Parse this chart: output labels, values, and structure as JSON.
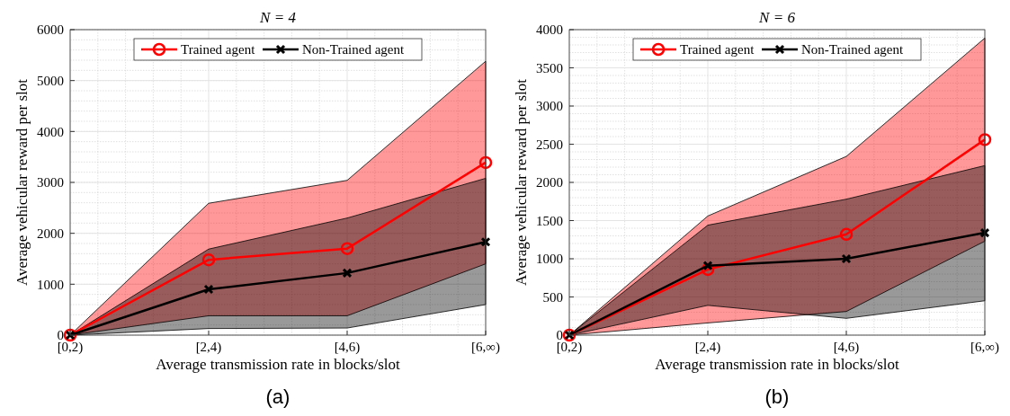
{
  "chart_data": [
    {
      "type": "line",
      "title": "N = 4",
      "xlabel": "Average transmission rate in blocks/slot",
      "ylabel": "Average vehicular reward per slot",
      "categories": [
        "[0,2)",
        "[2,4)",
        "[4,6)",
        "[6,∞)"
      ],
      "ylim": [
        0,
        6000
      ],
      "yticks": [
        0,
        1000,
        2000,
        3000,
        4000,
        5000,
        6000
      ],
      "grid": true,
      "legend": "top",
      "annotations": [
        "(a)"
      ],
      "series": [
        {
          "name": "Trained agent",
          "color": "#ff0000",
          "marker": "circle",
          "values": [
            0,
            1480,
            1700,
            3390
          ],
          "lower": [
            0,
            380,
            380,
            1400
          ],
          "upper": [
            0,
            2590,
            3040,
            5380
          ]
        },
        {
          "name": "Non-Trained agent",
          "color": "#000000",
          "marker": "cross",
          "values": [
            0,
            900,
            1220,
            1830
          ],
          "lower": [
            0,
            130,
            140,
            600
          ],
          "upper": [
            0,
            1690,
            2300,
            3080
          ]
        }
      ]
    },
    {
      "type": "line",
      "title": "N = 6",
      "xlabel": "Average transmission rate in blocks/slot",
      "ylabel": "Average vehicular reward per slot",
      "categories": [
        "[0,2)",
        "[2,4)",
        "[4,6)",
        "[6,∞)"
      ],
      "ylim": [
        0,
        4000
      ],
      "yticks": [
        0,
        500,
        1000,
        1500,
        2000,
        2500,
        3000,
        3500,
        4000
      ],
      "grid": true,
      "legend": "top",
      "annotations": [
        "(b)"
      ],
      "series": [
        {
          "name": "Trained agent",
          "color": "#ff0000",
          "marker": "circle",
          "values": [
            0,
            860,
            1320,
            2560
          ],
          "lower": [
            0,
            160,
            310,
            1230
          ],
          "upper": [
            0,
            1560,
            2340,
            3890
          ]
        },
        {
          "name": "Non-Trained agent",
          "color": "#000000",
          "marker": "cross",
          "values": [
            0,
            910,
            1000,
            1340
          ],
          "lower": [
            0,
            390,
            220,
            450
          ],
          "upper": [
            0,
            1440,
            1780,
            2220
          ]
        }
      ]
    }
  ]
}
